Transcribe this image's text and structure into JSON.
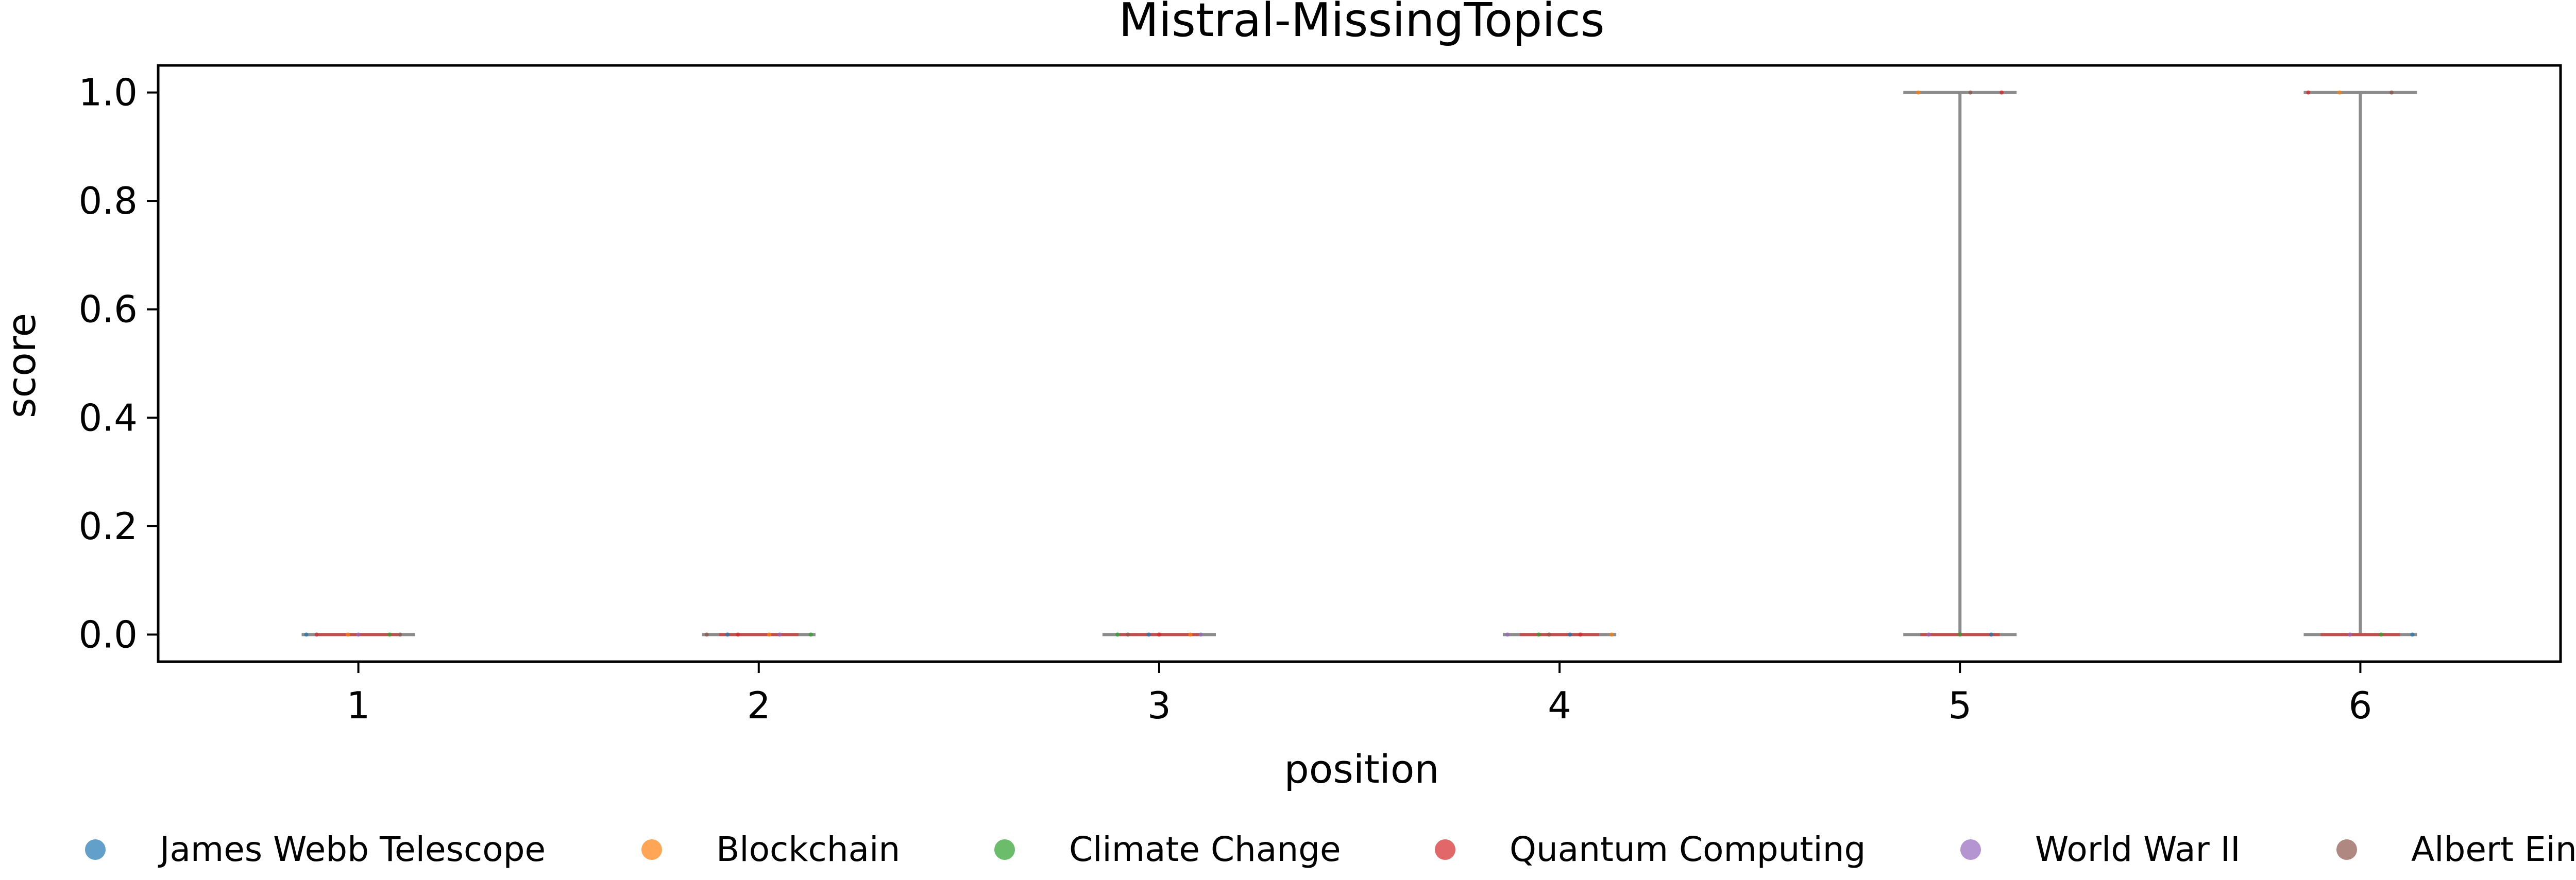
{
  "chart_data": {
    "type": "boxplot",
    "title": "Mistral-MissingTopics",
    "xlabel": "position",
    "ylabel": "score",
    "categories": [
      "1",
      "2",
      "3",
      "4",
      "5",
      "6"
    ],
    "yticks": [
      "0.0",
      "0.2",
      "0.4",
      "0.6",
      "0.8",
      "1.0"
    ],
    "ylim": [
      -0.05,
      1.05
    ],
    "grid": false,
    "legend_position": "bottom",
    "boxes": [
      {
        "position": 1,
        "whisker_low": 0.0,
        "q1": 0.0,
        "median": 0.0,
        "q3": 0.0,
        "whisker_high": 0.0
      },
      {
        "position": 2,
        "whisker_low": 0.0,
        "q1": 0.0,
        "median": 0.0,
        "q3": 0.0,
        "whisker_high": 0.0
      },
      {
        "position": 3,
        "whisker_low": 0.0,
        "q1": 0.0,
        "median": 0.0,
        "q3": 0.0,
        "whisker_high": 0.0
      },
      {
        "position": 4,
        "whisker_low": 0.0,
        "q1": 0.0,
        "median": 0.0,
        "q3": 0.0,
        "whisker_high": 0.0
      },
      {
        "position": 5,
        "whisker_low": 0.0,
        "q1": 0.0,
        "median": 0.0,
        "q3": 1.0,
        "whisker_high": 1.0
      },
      {
        "position": 6,
        "whisker_low": 0.0,
        "q1": 0.0,
        "median": 0.0,
        "q3": 1.0,
        "whisker_high": 1.0
      }
    ],
    "series": [
      {
        "name": "James Webb Telescope",
        "color": "#1f77b4",
        "points": [
          [
            1,
            0
          ],
          [
            2,
            0
          ],
          [
            3,
            0
          ],
          [
            4,
            0
          ],
          [
            5,
            0
          ],
          [
            6,
            0
          ]
        ]
      },
      {
        "name": "Blockchain",
        "color": "#ff7f0e",
        "points": [
          [
            1,
            0
          ],
          [
            2,
            0
          ],
          [
            3,
            0
          ],
          [
            4,
            0
          ],
          [
            5,
            1
          ],
          [
            6,
            1
          ]
        ]
      },
      {
        "name": "Climate Change",
        "color": "#2ca02c",
        "points": [
          [
            1,
            0
          ],
          [
            2,
            0
          ],
          [
            3,
            0
          ],
          [
            4,
            0
          ],
          [
            5,
            0
          ],
          [
            6,
            0
          ]
        ]
      },
      {
        "name": "Quantum Computing",
        "color": "#d62728",
        "points": [
          [
            1,
            0
          ],
          [
            2,
            0
          ],
          [
            3,
            0
          ],
          [
            4,
            0
          ],
          [
            5,
            1
          ],
          [
            6,
            1
          ]
        ]
      },
      {
        "name": "World War II",
        "color": "#9467bd",
        "points": [
          [
            1,
            0
          ],
          [
            2,
            0
          ],
          [
            3,
            0
          ],
          [
            4,
            0
          ],
          [
            5,
            0
          ],
          [
            6,
            0
          ]
        ]
      },
      {
        "name": "Albert Einstein",
        "color": "#8c564b",
        "points": [
          [
            1,
            0
          ],
          [
            2,
            0
          ],
          [
            3,
            0
          ],
          [
            4,
            0
          ],
          [
            5,
            1
          ],
          [
            6,
            1
          ]
        ]
      }
    ]
  }
}
